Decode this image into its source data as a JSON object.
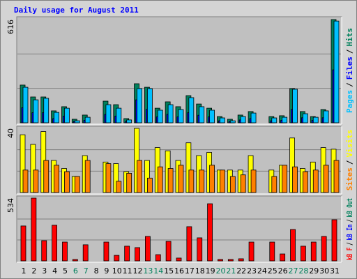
{
  "chart_data": [
    {
      "type": "bar",
      "title": "Daily usage for August 2011",
      "ylim": [
        0,
        616
      ],
      "yticks": [
        616
      ],
      "grid": true,
      "legend_separator": "/",
      "series": [
        {
          "name": "Pages",
          "color": "#00c0ff",
          "values": [
            212,
            137,
            146,
            62,
            87,
            12,
            33,
            0,
            108,
            87,
            17,
            204,
            204,
            75,
            108,
            79,
            150,
            96,
            75,
            29,
            12,
            37,
            58,
            0,
            29,
            33,
            200,
            54,
            33,
            71,
            607
          ]
        },
        {
          "name": "Files",
          "color": "#0000ff",
          "values": [
            90,
            60,
            60,
            25,
            40,
            8,
            15,
            0,
            50,
            40,
            8,
            137,
            80,
            35,
            50,
            35,
            60,
            45,
            35,
            12,
            8,
            17,
            25,
            0,
            12,
            15,
            80,
            30,
            15,
            30,
            316
          ]
        },
        {
          "name": "Hits",
          "color": "#00805c",
          "values": [
            225,
            154,
            154,
            71,
            96,
            21,
            46,
            0,
            129,
            108,
            25,
            233,
            212,
            87,
            125,
            96,
            162,
            112,
            87,
            37,
            21,
            46,
            67,
            0,
            37,
            42,
            204,
            67,
            37,
            79,
            616
          ]
        }
      ]
    },
    {
      "type": "bar",
      "ylim": [
        0,
        40
      ],
      "yticks": [
        40
      ],
      "grid": true,
      "legend_separator": "/",
      "series": [
        {
          "name": "Sites",
          "color": "#ff8000",
          "values": [
            14,
            14,
            20,
            17,
            13,
            10,
            20,
            0,
            18,
            7,
            12,
            20,
            9,
            16,
            15,
            17,
            14,
            14,
            17,
            14,
            10,
            11,
            14,
            0,
            10,
            17,
            16,
            13,
            14,
            17,
            20
          ]
        },
        {
          "name": "Visits",
          "color": "#ffff00",
          "values": [
            36,
            30,
            38,
            20,
            15,
            10,
            23,
            0,
            19,
            18,
            13,
            40,
            20,
            28,
            26,
            20,
            31,
            23,
            25,
            14,
            14,
            14,
            23,
            0,
            14,
            17,
            34,
            15,
            19,
            28,
            27
          ]
        }
      ]
    },
    {
      "type": "bar",
      "ylim": [
        0,
        534
      ],
      "yticks": [
        534
      ],
      "grid": true,
      "legend_separator": "/",
      "categories": [
        "1",
        "2",
        "3",
        "4",
        "5",
        "6",
        "7",
        "8",
        "9",
        "10",
        "11",
        "12",
        "13",
        "14",
        "15",
        "16",
        "17",
        "18",
        "19",
        "20",
        "21",
        "22",
        "23",
        "24",
        "25",
        "26",
        "27",
        "28",
        "29",
        "30",
        "31"
      ],
      "category_colors": [
        "#000000",
        "#000000",
        "#000000",
        "#000000",
        "#000000",
        "#00805c",
        "#00805c",
        "#000000",
        "#000000",
        "#000000",
        "#000000",
        "#000000",
        "#00805c",
        "#00805c",
        "#000000",
        "#000000",
        "#000000",
        "#000000",
        "#000000",
        "#00805c",
        "#00805c",
        "#000000",
        "#000000",
        "#000000",
        "#000000",
        "#000000",
        "#00805c",
        "#00805c",
        "#000000",
        "#000000",
        "#000000"
      ],
      "series": [
        {
          "name": "kB F",
          "color": "#ff0000",
          "values": [
            297,
            534,
            172,
            303,
            160,
            12,
            137,
            0,
            160,
            47,
            125,
            113,
            208,
            53,
            166,
            24,
            291,
            196,
            486,
            12,
            12,
            18,
            160,
            0,
            160,
            59,
            267,
            125,
            160,
            208,
            350
          ]
        },
        {
          "name": "kB In",
          "color": "#0000ff"
        },
        {
          "name": "kB Out",
          "color": "#00805c"
        }
      ]
    }
  ]
}
